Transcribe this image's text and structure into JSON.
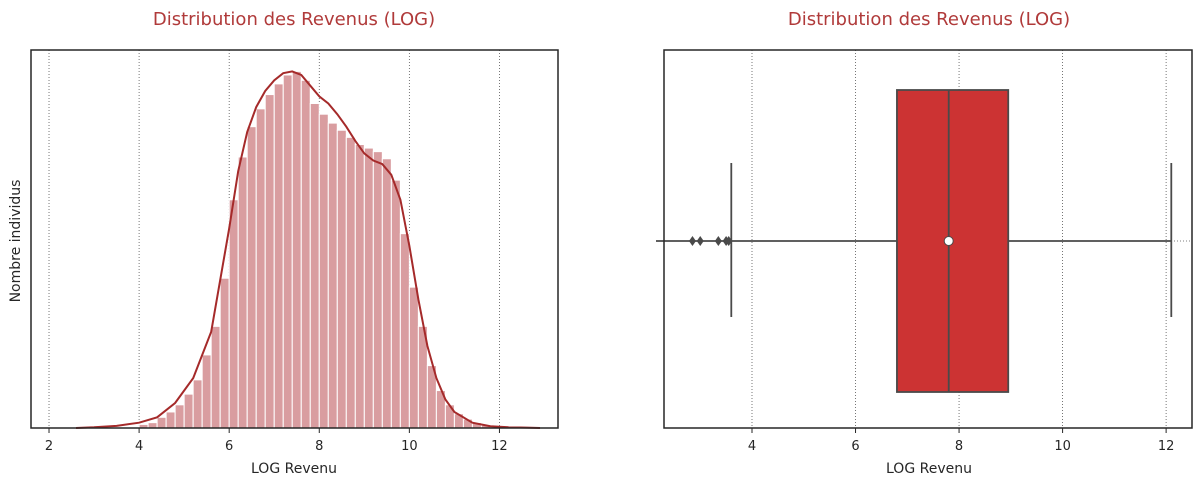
{
  "colors": {
    "title": "#b03a3a",
    "hist_fill": "#d99da0",
    "kde_line": "#a52a2a",
    "box_fill": "#cc3333",
    "box_line": "#4a4a4a",
    "axes": "#262626",
    "grid": "#555555"
  },
  "chart_data": [
    {
      "type": "histogram",
      "title": "Distribution des Revenus (LOG)",
      "xlabel": "LOG Revenu",
      "ylabel": "Nombre individus",
      "xlim": [
        1.6,
        13.3
      ],
      "ylim": [
        0,
        1.06
      ],
      "xticks": [
        2,
        4,
        6,
        8,
        10,
        12
      ],
      "xtick_labels": [
        "2",
        "4",
        "6",
        "8",
        "10",
        "12"
      ],
      "grid": "x dotted",
      "bins": [
        {
          "x0": 4.0,
          "x1": 4.2,
          "v": 0.01
        },
        {
          "x0": 4.2,
          "x1": 4.4,
          "v": 0.015
        },
        {
          "x0": 4.4,
          "x1": 4.6,
          "v": 0.03
        },
        {
          "x0": 4.6,
          "x1": 4.8,
          "v": 0.045
        },
        {
          "x0": 4.8,
          "x1": 5.0,
          "v": 0.065
        },
        {
          "x0": 5.0,
          "x1": 5.2,
          "v": 0.095
        },
        {
          "x0": 5.2,
          "x1": 5.4,
          "v": 0.135
        },
        {
          "x0": 5.4,
          "x1": 5.6,
          "v": 0.205
        },
        {
          "x0": 5.6,
          "x1": 5.8,
          "v": 0.285
        },
        {
          "x0": 5.8,
          "x1": 6.0,
          "v": 0.42
        },
        {
          "x0": 6.0,
          "x1": 6.2,
          "v": 0.64
        },
        {
          "x0": 6.2,
          "x1": 6.4,
          "v": 0.76
        },
        {
          "x0": 6.4,
          "x1": 6.6,
          "v": 0.845
        },
        {
          "x0": 6.6,
          "x1": 6.8,
          "v": 0.895
        },
        {
          "x0": 6.8,
          "x1": 7.0,
          "v": 0.935
        },
        {
          "x0": 7.0,
          "x1": 7.2,
          "v": 0.965
        },
        {
          "x0": 7.2,
          "x1": 7.4,
          "v": 0.99
        },
        {
          "x0": 7.4,
          "x1": 7.6,
          "v": 1.0
        },
        {
          "x0": 7.6,
          "x1": 7.8,
          "v": 0.975
        },
        {
          "x0": 7.8,
          "x1": 8.0,
          "v": 0.91
        },
        {
          "x0": 8.0,
          "x1": 8.2,
          "v": 0.88
        },
        {
          "x0": 8.2,
          "x1": 8.4,
          "v": 0.855
        },
        {
          "x0": 8.4,
          "x1": 8.6,
          "v": 0.835
        },
        {
          "x0": 8.6,
          "x1": 8.8,
          "v": 0.815
        },
        {
          "x0": 8.8,
          "x1": 9.0,
          "v": 0.795
        },
        {
          "x0": 9.0,
          "x1": 9.2,
          "v": 0.785
        },
        {
          "x0": 9.2,
          "x1": 9.4,
          "v": 0.775
        },
        {
          "x0": 9.4,
          "x1": 9.6,
          "v": 0.755
        },
        {
          "x0": 9.6,
          "x1": 9.8,
          "v": 0.695
        },
        {
          "x0": 9.8,
          "x1": 10.0,
          "v": 0.545
        },
        {
          "x0": 10.0,
          "x1": 10.2,
          "v": 0.395
        },
        {
          "x0": 10.2,
          "x1": 10.4,
          "v": 0.285
        },
        {
          "x0": 10.4,
          "x1": 10.6,
          "v": 0.175
        },
        {
          "x0": 10.6,
          "x1": 10.8,
          "v": 0.105
        },
        {
          "x0": 10.8,
          "x1": 11.0,
          "v": 0.065
        },
        {
          "x0": 11.0,
          "x1": 11.2,
          "v": 0.04
        },
        {
          "x0": 11.2,
          "x1": 11.4,
          "v": 0.025
        },
        {
          "x0": 11.4,
          "x1": 11.6,
          "v": 0.015
        },
        {
          "x0": 11.6,
          "x1": 11.8,
          "v": 0.008
        }
      ],
      "kde": {
        "x": [
          2.6,
          3.0,
          3.5,
          4.0,
          4.4,
          4.8,
          5.2,
          5.6,
          6.0,
          6.2,
          6.4,
          6.6,
          6.8,
          7.0,
          7.2,
          7.4,
          7.6,
          7.8,
          8.0,
          8.2,
          8.4,
          8.6,
          8.8,
          9.0,
          9.2,
          9.4,
          9.6,
          9.8,
          10.0,
          10.2,
          10.4,
          10.6,
          10.8,
          11.0,
          11.4,
          11.8,
          12.2,
          12.6,
          12.9
        ],
        "y": [
          0.0,
          0.002,
          0.006,
          0.015,
          0.03,
          0.07,
          0.14,
          0.27,
          0.56,
          0.72,
          0.83,
          0.9,
          0.945,
          0.975,
          0.995,
          1.0,
          0.99,
          0.96,
          0.93,
          0.91,
          0.88,
          0.845,
          0.805,
          0.77,
          0.75,
          0.74,
          0.71,
          0.64,
          0.51,
          0.36,
          0.23,
          0.14,
          0.08,
          0.045,
          0.015,
          0.005,
          0.002,
          0.001,
          0.0
        ]
      }
    },
    {
      "type": "box",
      "title": "Distribution des Revenus (LOG)",
      "xlabel": "LOG Revenu",
      "xlim": [
        2.3,
        12.5
      ],
      "xticks": [
        4,
        6,
        8,
        10,
        12
      ],
      "xtick_labels": [
        "4",
        "6",
        "8",
        "10",
        "12"
      ],
      "grid": "x dotted, y dotted",
      "whisker_low": 3.6,
      "q1": 6.8,
      "median": 7.8,
      "mean": 7.8,
      "q3": 8.95,
      "whisker_high": 12.1,
      "outliers": [
        2.85,
        3.0,
        3.35,
        3.5,
        3.55
      ],
      "axis_start": 2.3
    }
  ]
}
